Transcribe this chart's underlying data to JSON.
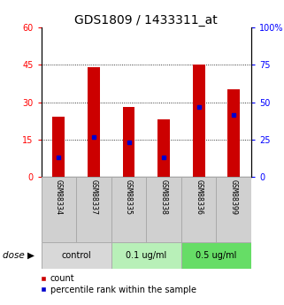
{
  "title": "GDS1809 / 1433311_at",
  "samples": [
    "GSM88334",
    "GSM88337",
    "GSM88335",
    "GSM88338",
    "GSM88336",
    "GSM88399"
  ],
  "bar_heights": [
    24,
    44,
    28,
    23,
    45,
    35
  ],
  "blue_markers": [
    8,
    16,
    14,
    8,
    28,
    25
  ],
  "bar_color": "#cc0000",
  "blue_color": "#0000cc",
  "left_ylim": [
    0,
    60
  ],
  "right_ylim": [
    0,
    100
  ],
  "left_yticks": [
    0,
    15,
    30,
    45,
    60
  ],
  "right_yticks": [
    0,
    25,
    50,
    75,
    100
  ],
  "right_yticklabels": [
    "0",
    "25",
    "50",
    "75",
    "100%"
  ],
  "groups": [
    {
      "label": "control",
      "start": 0,
      "end": 2,
      "color": "#d8d8d8"
    },
    {
      "label": "0.1 ug/ml",
      "start": 2,
      "end": 4,
      "color": "#b8f0b8"
    },
    {
      "label": "0.5 ug/ml",
      "start": 4,
      "end": 6,
      "color": "#66dd66"
    }
  ],
  "dose_label": "dose",
  "legend_count_label": "count",
  "legend_pct_label": "percentile rank within the sample",
  "title_fontsize": 10,
  "tick_fontsize": 7,
  "bar_width": 0.35
}
